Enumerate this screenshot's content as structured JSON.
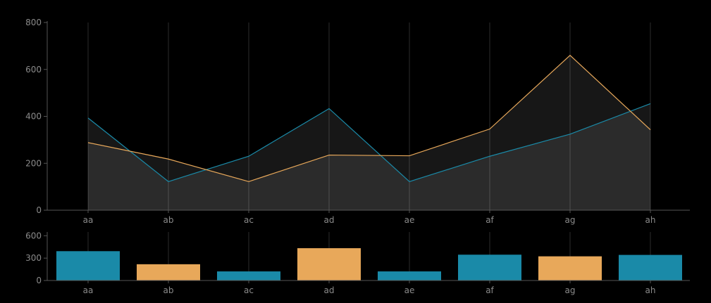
{
  "chart_data": [
    {
      "type": "area",
      "categories": [
        "aa",
        "ab",
        "ac",
        "ad",
        "ae",
        "af",
        "ag",
        "ah"
      ],
      "series": [
        {
          "values": [
            393,
            122,
            230,
            433,
            122,
            230,
            324,
            454
          ],
          "color": "#1a8aa8"
        },
        {
          "values": [
            288,
            218,
            122,
            235,
            232,
            346,
            660,
            343
          ],
          "color": "#e8a85a"
        }
      ],
      "ylim": [
        0,
        800
      ],
      "yticks": [
        0,
        200,
        400,
        600,
        800
      ],
      "grid": "vertical",
      "fill": "#2e2e2e"
    },
    {
      "type": "bar",
      "categories": [
        "aa",
        "ab",
        "ac",
        "ad",
        "ae",
        "af",
        "ag",
        "ah"
      ],
      "values": [
        393,
        218,
        122,
        433,
        122,
        346,
        324,
        343
      ],
      "bar_colors": [
        "#1a8aa8",
        "#e8a85a",
        "#1a8aa8",
        "#e8a85a",
        "#1a8aa8",
        "#1a8aa8",
        "#e8a85a",
        "#1a8aa8"
      ],
      "ylim": [
        0,
        650
      ],
      "yticks": [
        0,
        300,
        600
      ],
      "grid": "vertical"
    }
  ]
}
